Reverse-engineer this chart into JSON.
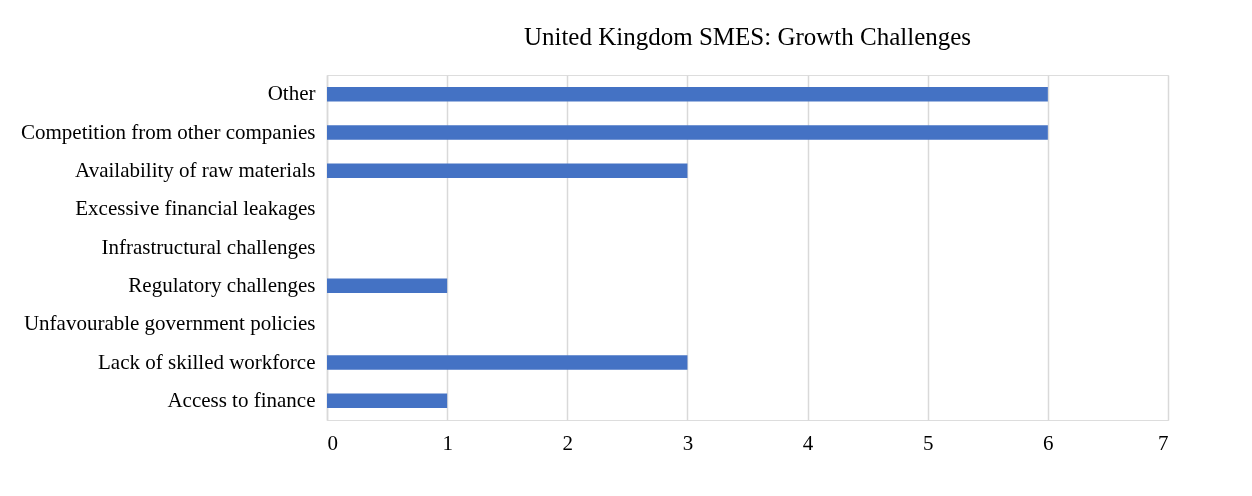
{
  "chart_data": {
    "type": "bar",
    "orientation": "horizontal",
    "title": "United Kingdom SMES: Growth Challenges",
    "categories": [
      "Other",
      "Competition from other companies",
      "Availability of raw materials",
      "Excessive financial leakages",
      "Infrastructural challenges",
      "Regulatory challenges",
      "Unfavourable government policies",
      "Lack of skilled workforce",
      "Access to finance"
    ],
    "values": [
      6,
      6,
      3,
      0,
      0,
      1,
      0,
      3,
      1
    ],
    "color": "#4472c4",
    "xlim": [
      0,
      7
    ],
    "xticks": [
      0,
      1,
      2,
      3,
      4,
      5,
      6,
      7
    ],
    "grid": "x"
  }
}
